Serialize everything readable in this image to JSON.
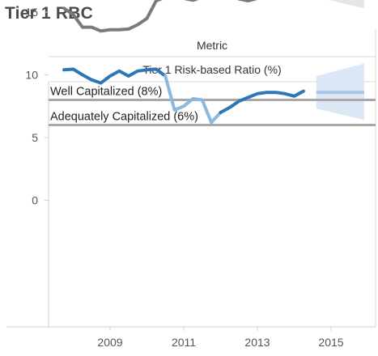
{
  "title": "Tier 1 RBC",
  "header": {
    "field_name": "Metric",
    "field_value": "Tier 1 Risk-based Ratio (%)"
  },
  "chart_data": {
    "type": "line",
    "ylabel": "",
    "xlabel": "",
    "ylim": [
      0,
      20
    ],
    "xlim": [
      2007.4,
      2016.2
    ],
    "y_ticks": [
      0,
      5,
      10,
      15
    ],
    "x_ticks": [
      2009,
      2011,
      2013,
      2015
    ],
    "grid": false,
    "series": [
      {
        "color": "#7a7a7a",
        "line_width": 4,
        "x": [
          2007.75,
          2008.0,
          2008.25,
          2008.5,
          2008.75,
          2009.0,
          2009.25,
          2009.5,
          2009.75,
          2010.0,
          2010.25,
          2010.5,
          2010.75,
          2011.0,
          2011.25,
          2011.5,
          2011.75,
          2012.0,
          2012.25,
          2012.5,
          2012.75,
          2013.0,
          2013.25,
          2013.5,
          2013.75,
          2014.0,
          2014.25
        ],
        "y": [
          15.3,
          14.8,
          13.8,
          13.8,
          13.5,
          13.6,
          13.6,
          13.65,
          14.0,
          14.5,
          15.9,
          16.2,
          16.2,
          16.1,
          15.95,
          16.2,
          16.15,
          16.45,
          16.4,
          16.05,
          15.9,
          16.1,
          16.6,
          16.75,
          16.7,
          16.95,
          16.7
        ]
      },
      {
        "color": "#2d77b6",
        "line_width": 4,
        "x": [
          2007.75,
          2008.0,
          2008.25,
          2008.5,
          2008.75,
          2009.0,
          2009.25,
          2009.5,
          2009.75,
          2010.0,
          2010.25,
          2010.5
        ],
        "y": [
          10.4,
          10.45,
          10.0,
          9.6,
          9.35,
          9.9,
          10.3,
          9.9,
          10.3,
          10.4,
          10.45,
          9.9
        ]
      },
      {
        "color": "#8db8de",
        "line_width": 4,
        "x": [
          2010.5,
          2010.75,
          2011.0,
          2011.25,
          2011.5,
          2011.75,
          2012.0
        ],
        "y": [
          9.9,
          7.2,
          7.5,
          8.1,
          8.0,
          6.2,
          7.0
        ]
      },
      {
        "color": "#2d77b6",
        "line_width": 4,
        "x": [
          2012.0,
          2012.25,
          2012.5,
          2012.75,
          2013.0,
          2013.25,
          2013.5,
          2013.75,
          2014.0,
          2014.25
        ],
        "y": [
          7.0,
          7.4,
          7.9,
          8.2,
          8.5,
          8.6,
          8.6,
          8.5,
          8.3,
          8.7
        ]
      }
    ],
    "forecasts": [
      {
        "color": "#c0c0c0",
        "band_color": "#e6e6e6",
        "x": [
          2014.6,
          2015.9
        ],
        "value": 16.8,
        "band_low_start": 16.2,
        "band_high_start": 17.4,
        "band_low_end": 15.3,
        "band_high_end": 18.4
      },
      {
        "color": "#a8c4e6",
        "band_color": "#dde8f7",
        "x": [
          2014.6,
          2015.9
        ],
        "value": 8.6,
        "band_low_start": 7.3,
        "band_high_start": 9.9,
        "band_low_end": 6.4,
        "band_high_end": 10.9
      }
    ],
    "reference_lines": [
      {
        "label": "Well Capitalized (8%)",
        "value": 8,
        "color": "#a8a8a8"
      },
      {
        "label": "Adequately Capitalized (6%)",
        "value": 6,
        "color": "#a8a8a8"
      }
    ]
  }
}
